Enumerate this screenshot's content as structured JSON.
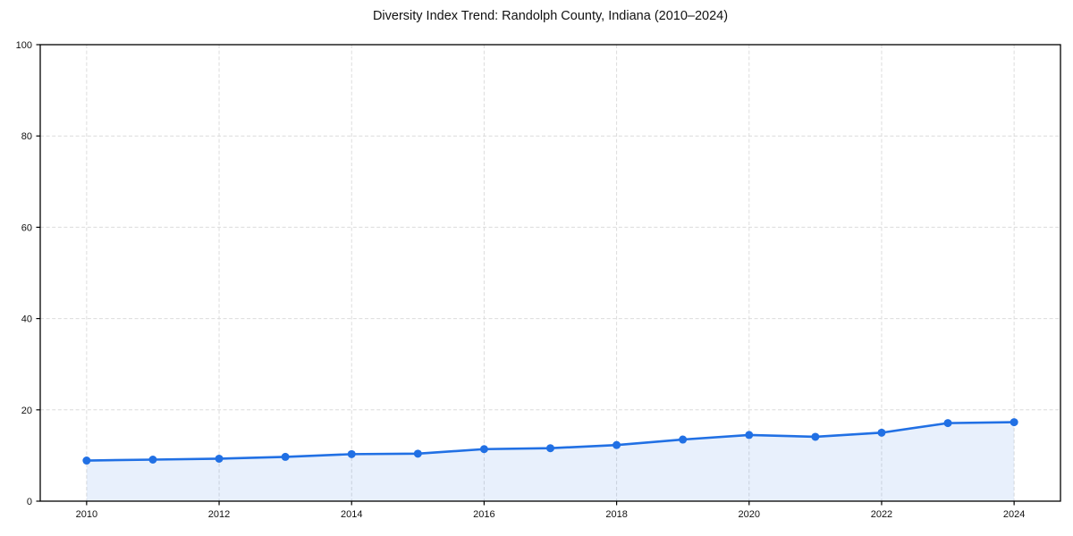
{
  "title": "Diversity Index Trend: Randolph County, Indiana (2010–2024)",
  "chart_data": {
    "type": "line",
    "title": "Diversity Index Trend: Randolph County, Indiana (2010–2024)",
    "x": [
      2010,
      2011,
      2012,
      2013,
      2014,
      2015,
      2016,
      2017,
      2018,
      2019,
      2020,
      2021,
      2022,
      2023,
      2024
    ],
    "series": [
      {
        "name": "Diversity Index",
        "values": [
          8.9,
          9.1,
          9.3,
          9.7,
          10.3,
          10.4,
          11.4,
          11.6,
          12.3,
          13.5,
          14.5,
          14.1,
          15.0,
          17.1,
          17.3
        ]
      }
    ],
    "xlabel": "",
    "ylabel": "",
    "xlim": [
      2009.3,
      2024.7
    ],
    "ylim": [
      0,
      100
    ],
    "x_ticks": [
      2010,
      2012,
      2014,
      2016,
      2018,
      2020,
      2022,
      2024
    ],
    "y_ticks": [
      0,
      20,
      40,
      60,
      80,
      100
    ],
    "grid": true,
    "grid_style": "dashed",
    "legend": "none",
    "marker": "circle",
    "area_fill": true
  },
  "colors": {
    "line": "#2170e4",
    "marker": "#2170e4",
    "area_fill": "rgba(33,112,228,0.10)",
    "grid": "#dcdcdc",
    "spine": "#000000",
    "tick_text": "#111111",
    "background": "#ffffff"
  }
}
